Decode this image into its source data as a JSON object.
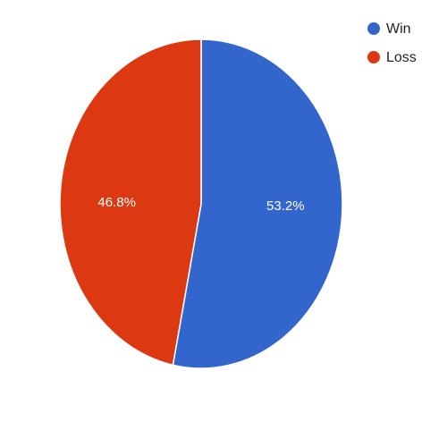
{
  "chart_data": {
    "type": "pie",
    "title": "",
    "legend_position": "top-right",
    "slices": [
      {
        "label": "Win",
        "value": 53.2,
        "value_label": "53.2%",
        "color": "#3366cc"
      },
      {
        "label": "Loss",
        "value": 46.8,
        "value_label": "46.8%",
        "color": "#dc3912"
      }
    ]
  }
}
